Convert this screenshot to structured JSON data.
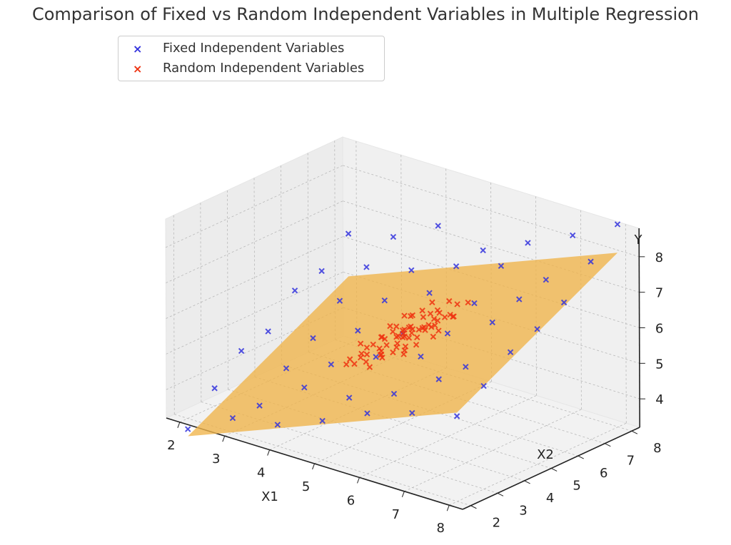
{
  "chart_data": {
    "type": "scatter",
    "title": "Comparison of Fixed vs Random Independent Variables in Multiple Regression",
    "xlabel": "X1",
    "ylabel": "X2",
    "zlabel": "Y",
    "xticks": [
      "2",
      "3",
      "4",
      "5",
      "6",
      "7",
      "8"
    ],
    "yticks": [
      "2",
      "3",
      "4",
      "5",
      "6",
      "7",
      "8"
    ],
    "zticks": [
      "4",
      "5",
      "6",
      "7",
      "8"
    ],
    "xlim": [
      1.7,
      8.3
    ],
    "ylim": [
      1.7,
      8.3
    ],
    "zlim": [
      3.2,
      8.8
    ],
    "grid": true,
    "legend_position": "top-left",
    "colors": {
      "fixed": "#3333dd",
      "random": "#ee3311",
      "plane": "#f0b449"
    },
    "plane": {
      "intercept": 0.9,
      "coef_x1": 0.5,
      "coef_x2": 0.4
    },
    "series": [
      {
        "name": "Fixed Independent Variables",
        "marker": "x",
        "points": [
          [
            2.0,
            2.0,
            2.9
          ],
          [
            2.0,
            3.0,
            3.7
          ],
          [
            2.0,
            4.0,
            4.4
          ],
          [
            2.0,
            5.0,
            4.6
          ],
          [
            2.0,
            6.0,
            5.4
          ],
          [
            2.0,
            7.0,
            5.6
          ],
          [
            2.0,
            8.0,
            6.3
          ],
          [
            3.0,
            2.0,
            3.6
          ],
          [
            3.0,
            3.0,
            3.6
          ],
          [
            3.0,
            4.0,
            4.3
          ],
          [
            3.0,
            5.0,
            4.8
          ],
          [
            3.0,
            6.0,
            5.5
          ],
          [
            3.0,
            7.0,
            6.1
          ],
          [
            3.0,
            8.0,
            6.6
          ],
          [
            4.0,
            2.0,
            3.8
          ],
          [
            4.0,
            3.0,
            4.5
          ],
          [
            4.0,
            4.0,
            4.8
          ],
          [
            4.0,
            5.0,
            5.4
          ],
          [
            4.0,
            6.0,
            5.9
          ],
          [
            4.0,
            7.0,
            6.4
          ],
          [
            4.0,
            8.0,
            7.3
          ],
          [
            5.0,
            2.0,
            4.3
          ],
          [
            5.0,
            3.0,
            4.6
          ],
          [
            5.0,
            4.0,
            5.4
          ],
          [
            5.0,
            5.0,
            5.7
          ],
          [
            5.0,
            6.0,
            6.5
          ],
          [
            5.0,
            7.0,
            6.9
          ],
          [
            5.0,
            8.0,
            7.0
          ],
          [
            6.0,
            2.0,
            4.9
          ],
          [
            6.0,
            3.0,
            5.1
          ],
          [
            6.0,
            4.0,
            5.8
          ],
          [
            6.0,
            5.0,
            6.1
          ],
          [
            6.0,
            6.0,
            6.6
          ],
          [
            6.0,
            7.0,
            7.3
          ],
          [
            6.0,
            8.0,
            7.6
          ],
          [
            7.0,
            2.0,
            5.3
          ],
          [
            7.0,
            3.0,
            5.9
          ],
          [
            7.0,
            4.0,
            5.9
          ],
          [
            7.0,
            5.0,
            6.8
          ],
          [
            7.0,
            6.0,
            7.1
          ],
          [
            7.0,
            7.0,
            7.3
          ],
          [
            7.0,
            8.0,
            8.2
          ],
          [
            8.0,
            2.0,
            5.6
          ],
          [
            8.0,
            3.0,
            6.1
          ],
          [
            8.0,
            4.0,
            6.7
          ],
          [
            8.0,
            5.0,
            7.0
          ],
          [
            8.0,
            6.0,
            7.4
          ],
          [
            8.0,
            7.0,
            8.2
          ],
          [
            8.0,
            8.0,
            8.9
          ]
        ]
      },
      {
        "name": "Random Independent Variables",
        "marker": "x",
        "points": [
          [
            5.0,
            5.0,
            5.6
          ],
          [
            4.8,
            5.1,
            5.5
          ],
          [
            5.2,
            4.9,
            5.7
          ],
          [
            5.4,
            5.3,
            6.0
          ],
          [
            4.6,
            4.8,
            5.2
          ],
          [
            5.1,
            5.6,
            6.0
          ],
          [
            4.9,
            4.4,
            5.2
          ],
          [
            5.5,
            4.7,
            5.9
          ],
          [
            4.4,
            5.2,
            5.3
          ],
          [
            5.3,
            5.8,
            6.2
          ],
          [
            4.7,
            5.5,
            5.5
          ],
          [
            5.6,
            5.2,
            6.1
          ],
          [
            4.3,
            4.6,
            4.9
          ],
          [
            5.0,
            4.2,
            5.4
          ],
          [
            5.8,
            5.0,
            6.1
          ],
          [
            4.5,
            5.9,
            5.7
          ],
          [
            5.2,
            5.4,
            5.8
          ],
          [
            4.9,
            5.0,
            5.6
          ],
          [
            5.1,
            4.6,
            5.5
          ],
          [
            4.8,
            5.7,
            5.9
          ],
          [
            5.7,
            5.6,
            6.3
          ],
          [
            4.2,
            5.0,
            5.0
          ],
          [
            5.4,
            4.4,
            5.6
          ],
          [
            4.6,
            5.3,
            5.5
          ],
          [
            5.9,
            5.4,
            6.4
          ],
          [
            4.1,
            4.4,
            4.7
          ],
          [
            5.3,
            5.1,
            5.9
          ],
          [
            4.7,
            4.9,
            5.3
          ],
          [
            5.0,
            6.1,
            6.2
          ],
          [
            5.5,
            5.9,
            6.5
          ],
          [
            4.4,
            4.2,
            4.9
          ],
          [
            5.6,
            4.5,
            5.8
          ],
          [
            4.9,
            5.4,
            5.7
          ],
          [
            5.2,
            4.3,
            5.5
          ],
          [
            4.5,
            5.6,
            5.5
          ],
          [
            5.8,
            5.7,
            6.6
          ],
          [
            4.3,
            5.4,
            5.2
          ],
          [
            5.1,
            5.2,
            5.8
          ],
          [
            4.8,
            4.5,
            5.2
          ],
          [
            6.0,
            5.2,
            6.5
          ],
          [
            4.0,
            5.1,
            5.0
          ],
          [
            5.4,
            5.5,
            6.1
          ],
          [
            4.6,
            4.3,
            5.0
          ],
          [
            5.7,
            4.9,
            6.2
          ],
          [
            4.9,
            5.9,
            6.0
          ],
          [
            5.3,
            4.6,
            5.6
          ],
          [
            4.2,
            4.8,
            4.9
          ],
          [
            5.0,
            5.3,
            5.8
          ],
          [
            5.6,
            5.3,
            6.2
          ],
          [
            4.7,
            5.8,
            5.8
          ],
          [
            6.1,
            5.6,
            6.8
          ],
          [
            4.4,
            4.9,
            5.2
          ],
          [
            5.2,
            5.7,
            6.1
          ],
          [
            4.8,
            4.1,
            5.0
          ],
          [
            5.5,
            5.0,
            6.0
          ],
          [
            4.6,
            5.0,
            5.4
          ],
          [
            5.1,
            4.9,
            5.7
          ],
          [
            4.9,
            5.2,
            5.6
          ],
          [
            5.3,
            5.3,
            5.9
          ],
          [
            4.7,
            4.7,
            5.2
          ],
          [
            5.8,
            4.8,
            6.0
          ],
          [
            4.5,
            4.5,
            5.1
          ],
          [
            5.0,
            4.8,
            5.5
          ],
          [
            5.4,
            5.7,
            6.2
          ],
          [
            4.3,
            5.7,
            5.4
          ],
          [
            5.7,
            5.4,
            6.3
          ],
          [
            4.0,
            4.7,
            4.7
          ],
          [
            5.2,
            5.0,
            5.8
          ],
          [
            4.8,
            5.4,
            5.6
          ],
          [
            5.5,
            4.2,
            5.6
          ]
        ]
      }
    ]
  }
}
